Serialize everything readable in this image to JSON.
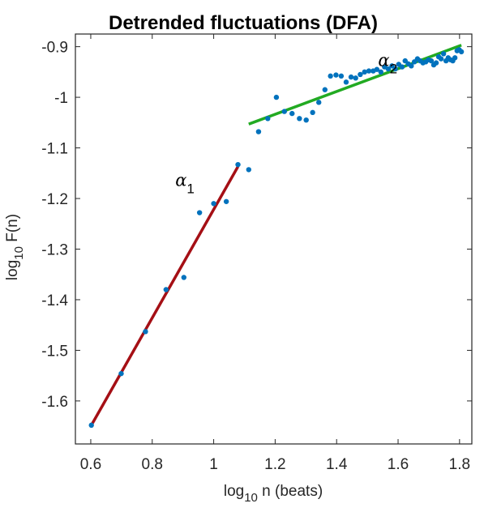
{
  "chart_data": {
    "type": "scatter",
    "title": "Detrended fluctuations (DFA)",
    "xlabel": {
      "prefix": "log",
      "sub": "10",
      "suffix": " n (beats)"
    },
    "ylabel": {
      "prefix": "log",
      "sub": "10",
      "suffix": " F(n)"
    },
    "xlim": [
      0.55,
      1.84
    ],
    "ylim": [
      -1.685,
      -0.875
    ],
    "xticks": [
      0.6,
      0.8,
      1.0,
      1.2,
      1.4,
      1.6,
      1.8
    ],
    "xtick_labels": [
      "0.6",
      "0.8",
      "1",
      "1.2",
      "1.4",
      "1.6",
      "1.8"
    ],
    "yticks": [
      -1.6,
      -1.5,
      -1.4,
      -1.3,
      -1.2,
      -1.1,
      -1.0,
      -0.9
    ],
    "ytick_labels": [
      "-1.6",
      "-1.5",
      "-1.4",
      "-1.3",
      "-1.2",
      "-1.1",
      "-1",
      "-0.9"
    ],
    "grid": false,
    "points": {
      "color": "#0072BD",
      "x": [
        0.602,
        0.699,
        0.778,
        0.845,
        0.903,
        0.954,
        1.0,
        1.041,
        1.079,
        1.114,
        1.146,
        1.176,
        1.204,
        1.23,
        1.255,
        1.279,
        1.301,
        1.322,
        1.342,
        1.362,
        1.38,
        1.398,
        1.415,
        1.431,
        1.447,
        1.462,
        1.477,
        1.491,
        1.505,
        1.519,
        1.531,
        1.544,
        1.556,
        1.568,
        1.58,
        1.591,
        1.602,
        1.613,
        1.623,
        1.633,
        1.643,
        1.653,
        1.663,
        1.672,
        1.681,
        1.69,
        1.699,
        1.708,
        1.716,
        1.724,
        1.732,
        1.74,
        1.748,
        1.756,
        1.763,
        1.771,
        1.778,
        1.785,
        1.792,
        1.799,
        1.806
      ],
      "y": [
        -1.648,
        -1.546,
        -1.463,
        -1.38,
        -1.356,
        -1.228,
        -1.21,
        -1.206,
        -1.133,
        -1.143,
        -1.068,
        -1.042,
        -1.0,
        -1.028,
        -1.032,
        -1.042,
        -1.045,
        -1.03,
        -1.01,
        -0.985,
        -0.958,
        -0.956,
        -0.958,
        -0.97,
        -0.96,
        -0.962,
        -0.955,
        -0.95,
        -0.948,
        -0.948,
        -0.945,
        -0.95,
        -0.94,
        -0.944,
        -0.938,
        -0.944,
        -0.935,
        -0.94,
        -0.928,
        -0.934,
        -0.938,
        -0.93,
        -0.924,
        -0.928,
        -0.932,
        -0.93,
        -0.926,
        -0.928,
        -0.936,
        -0.932,
        -0.92,
        -0.924,
        -0.914,
        -0.928,
        -0.922,
        -0.926,
        -0.928,
        -0.922,
        -0.908,
        -0.906,
        -0.91
      ]
    },
    "fits": [
      {
        "name": "alpha1",
        "color": "#A50F15",
        "x": [
          0.602,
          1.079
        ],
        "y": [
          -1.648,
          -1.137
        ]
      },
      {
        "name": "alpha2",
        "color": "#22AA22",
        "x": [
          1.114,
          1.806
        ],
        "y": [
          -1.053,
          -0.897
        ]
      }
    ],
    "annotations": [
      {
        "symbol": "α",
        "sub": "1",
        "x": 0.875,
        "y": -1.175
      },
      {
        "symbol": "α",
        "sub": "2",
        "x": 1.535,
        "y": -0.938
      }
    ]
  }
}
